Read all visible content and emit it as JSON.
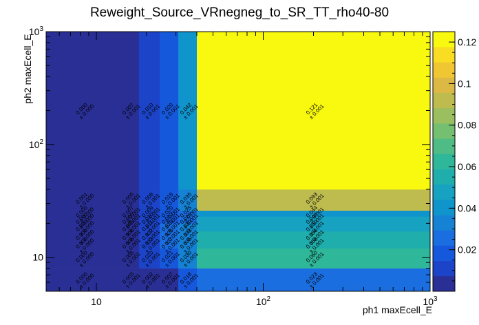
{
  "chart_data": {
    "type": "heatmap",
    "title": "Reweight_Source_VRnegneg_to_SR_TT_rho40-80",
    "xlabel": "ph1 maxEcell_E",
    "ylabel": "ph2 maxEcell_E",
    "xscale": "log",
    "yscale": "log",
    "xlim": [
      5,
      1000
    ],
    "ylim": [
      5,
      1000
    ],
    "x_ticks": [
      {
        "value": 10,
        "base": "10",
        "exp": ""
      },
      {
        "value": 100,
        "base": "10",
        "exp": "2"
      },
      {
        "value": 1000,
        "base": "10",
        "exp": "3"
      }
    ],
    "y_ticks": [
      {
        "value": 10,
        "base": "10",
        "exp": ""
      },
      {
        "value": 100,
        "base": "10",
        "exp": "2"
      },
      {
        "value": 1000,
        "base": "10",
        "exp": "3"
      }
    ],
    "x_edges": [
      5,
      14,
      18,
      24,
      31,
      40,
      1000
    ],
    "y_edges": [
      5,
      8,
      12,
      14,
      17,
      20,
      23,
      26,
      40,
      1000
    ],
    "z_range": [
      0,
      0.125
    ],
    "colorbar_ticks": [
      "0.02",
      "0.04",
      "0.06",
      "0.08",
      "0.1",
      "0.12"
    ],
    "colorbar_tick_values": [
      0.02,
      0.04,
      0.06,
      0.08,
      0.1,
      0.12
    ],
    "colorbar_palette": [
      "#2a2f96",
      "#1c44c8",
      "#1658dc",
      "#1a6ee0",
      "#1582d4",
      "#0f94cc",
      "#16a2c0",
      "#1faeab",
      "#2fb79a",
      "#4fbc85",
      "#74c070",
      "#9bbf5e",
      "#bebc4f",
      "#dbb944",
      "#f0c632",
      "#f8dd22",
      "#f9f90f"
    ],
    "cells": [
      {
        "row": 0,
        "values": [
          0.0,
          0.003,
          0.002,
          0.007,
          0.018,
          0.023
        ],
        "errors": [
          0.0,
          0.001,
          0.001,
          0.001,
          0.001,
          0.001
        ]
      },
      {
        "row": 1,
        "values": [
          0.0,
          0.005,
          0.01,
          0.021,
          0.03,
          0.06
        ],
        "errors": [
          0.0,
          0.001,
          0.001,
          0.001,
          0.001,
          0.001
        ]
      },
      {
        "row": 2,
        "values": [
          0.0,
          0.006,
          0.013,
          0.027,
          0.035,
          0.058
        ],
        "errors": [
          0.0,
          0.001,
          0.001,
          0.001,
          0.001,
          0.001
        ]
      },
      {
        "row": 3,
        "values": [
          0.0,
          0.006,
          0.012,
          0.025,
          0.033,
          0.056
        ],
        "errors": [
          0.0,
          0.001,
          0.001,
          0.001,
          0.001,
          0.001
        ]
      },
      {
        "row": 4,
        "values": [
          0.0,
          0.005,
          0.011,
          0.023,
          0.03,
          0.05
        ],
        "errors": [
          0.0,
          0.001,
          0.001,
          0.001,
          0.001,
          0.001
        ]
      },
      {
        "row": 5,
        "values": [
          0.0,
          0.005,
          0.01,
          0.022,
          0.029,
          0.048
        ],
        "errors": [
          0.0,
          0.001,
          0.001,
          0.001,
          0.001,
          0.001
        ]
      },
      {
        "row": 6,
        "values": [
          0.0,
          0.007,
          0.009,
          0.02,
          0.025,
          0.044
        ],
        "errors": [
          0.0,
          0.001,
          0.001,
          0.001,
          0.001,
          0.001
        ]
      },
      {
        "row": 7,
        "values": [
          0.001,
          0.005,
          0.008,
          0.018,
          0.035,
          0.093
        ],
        "errors": [
          0.0,
          0.001,
          0.001,
          0.001,
          0.001,
          0.001
        ]
      },
      {
        "row": 8,
        "values": [
          0.0,
          0.007,
          0.01,
          0.02,
          0.042,
          0.121
        ],
        "errors": [
          0.0,
          0.001,
          0.001,
          0.001,
          0.001,
          0.001
        ]
      }
    ],
    "grid": false,
    "legend": "colorbar-right"
  }
}
